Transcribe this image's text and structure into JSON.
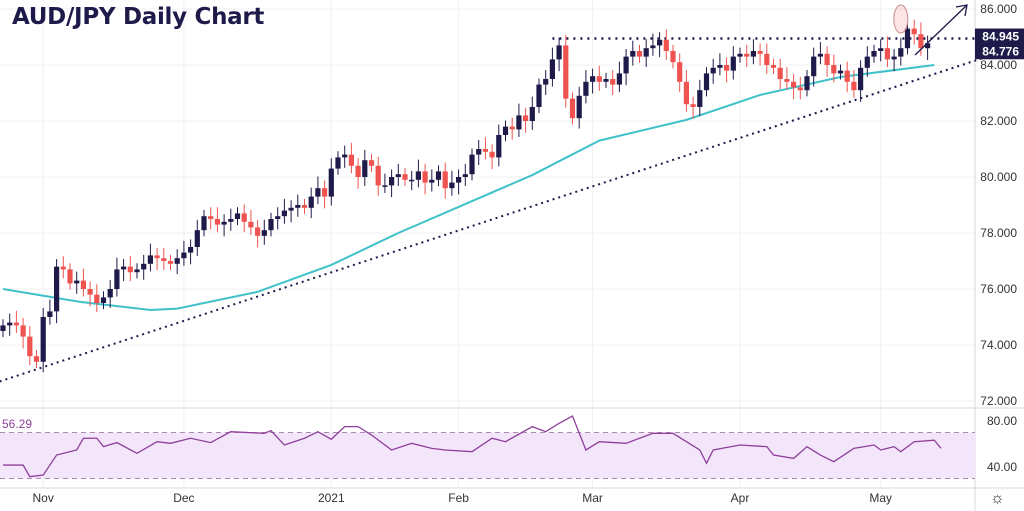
{
  "chart_data": {
    "type": "candlestick",
    "title": "AUD/JPY Daily Chart",
    "price_axis": {
      "range": [
        72,
        86
      ],
      "ticks": [
        "86.000",
        "84.000",
        "82.000",
        "80.000",
        "78.000",
        "76.000",
        "74.000",
        "72.000"
      ]
    },
    "price_badges": [
      "84.945",
      "84.776"
    ],
    "month_labels": [
      {
        "label": "Nov",
        "day": 6
      },
      {
        "label": "Dec",
        "day": 27
      },
      {
        "label": "2021",
        "day": 49
      },
      {
        "label": "Feb",
        "day": 68
      },
      {
        "label": "Mar",
        "day": 88
      },
      {
        "label": "Apr",
        "day": 110
      },
      {
        "label": "May",
        "day": 131
      }
    ],
    "first_open": 74.5,
    "closes": [
      74.7,
      74.8,
      74.7,
      74.3,
      73.6,
      73.4,
      75.0,
      75.2,
      76.8,
      76.7,
      76.2,
      76.3,
      76.0,
      75.8,
      75.5,
      75.7,
      76.0,
      76.7,
      76.8,
      76.6,
      76.7,
      76.9,
      77.2,
      77.1,
      77.0,
      76.9,
      77.1,
      77.3,
      77.5,
      78.1,
      78.6,
      78.5,
      78.3,
      78.4,
      78.5,
      78.7,
      78.4,
      78.2,
      77.9,
      78.1,
      78.5,
      78.6,
      78.8,
      78.9,
      79.0,
      78.9,
      79.3,
      79.6,
      79.3,
      80.3,
      80.7,
      80.8,
      80.4,
      80.0,
      80.6,
      80.4,
      79.7,
      79.7,
      80.0,
      80.1,
      79.9,
      79.9,
      80.2,
      79.8,
      79.9,
      80.2,
      79.6,
      79.8,
      80.0,
      80.1,
      80.8,
      81.0,
      80.9,
      80.7,
      81.5,
      81.8,
      81.7,
      82.2,
      82.0,
      82.5,
      83.3,
      83.5,
      84.2,
      84.7,
      82.8,
      82.1,
      82.9,
      83.4,
      83.6,
      83.4,
      83.5,
      83.3,
      83.7,
      84.3,
      84.5,
      84.3,
      84.6,
      84.7,
      84.9,
      84.5,
      84.1,
      83.4,
      82.6,
      82.5,
      83.1,
      83.7,
      83.9,
      84.0,
      83.8,
      84.3,
      84.4,
      84.3,
      84.5,
      84.4,
      84.0,
      83.9,
      83.5,
      83.4,
      83.2,
      83.1,
      83.6,
      84.3,
      84.4,
      84.0,
      83.7,
      83.8,
      83.4,
      83.1,
      83.9,
      84.3,
      84.5,
      84.6,
      84.2,
      84.3,
      84.6,
      85.3,
      85.1,
      84.6,
      84.776
    ],
    "moving_average": [
      [
        0,
        76.0
      ],
      [
        11.5,
        75.54
      ],
      [
        22,
        75.25
      ],
      [
        26,
        75.3
      ],
      [
        38,
        75.9
      ],
      [
        49,
        76.86
      ],
      [
        59,
        78.0
      ],
      [
        68,
        78.93
      ],
      [
        79,
        80.07
      ],
      [
        89,
        81.3
      ],
      [
        102,
        82.04
      ],
      [
        113,
        82.93
      ],
      [
        125,
        83.57
      ],
      [
        139,
        84.0
      ]
    ],
    "trendline_support": [
      [
        -0.5,
        72.7
      ],
      [
        152,
        84.7
      ]
    ],
    "resistance_level": {
      "value": 84.945,
      "from_day": 82
    },
    "rsi": {
      "label": "56.29",
      "ticks": [
        "80.00",
        "40.00"
      ],
      "overbought": 70,
      "oversold": 30,
      "values": [
        [
          0,
          41.7
        ],
        [
          3,
          41.7
        ],
        [
          4,
          31.6
        ],
        [
          6,
          33
        ],
        [
          8,
          50.4
        ],
        [
          11,
          54.8
        ],
        [
          12,
          65
        ],
        [
          14,
          65
        ],
        [
          15,
          57.7
        ],
        [
          17,
          61.2
        ],
        [
          20,
          51.9
        ],
        [
          23,
          62
        ],
        [
          25,
          60.6
        ],
        [
          28,
          65
        ],
        [
          31,
          61.2
        ],
        [
          34,
          70.7
        ],
        [
          39,
          69.3
        ],
        [
          40,
          71.6
        ],
        [
          42,
          59.1
        ],
        [
          45,
          65
        ],
        [
          47,
          70.7
        ],
        [
          49,
          64.1
        ],
        [
          51,
          75.1
        ],
        [
          53,
          75.1
        ],
        [
          55,
          67.8
        ],
        [
          58,
          54.8
        ],
        [
          61,
          60.6
        ],
        [
          64,
          56.2
        ],
        [
          66,
          54.8
        ],
        [
          70,
          53.3
        ],
        [
          73,
          65
        ],
        [
          75,
          62
        ],
        [
          79,
          75.1
        ],
        [
          81,
          70.7
        ],
        [
          83,
          78
        ],
        [
          85,
          84.3
        ],
        [
          87,
          54.8
        ],
        [
          89,
          62
        ],
        [
          93,
          60.6
        ],
        [
          97,
          69.3
        ],
        [
          100,
          69.3
        ],
        [
          102,
          62
        ],
        [
          104,
          54.8
        ],
        [
          105,
          43.2
        ],
        [
          106,
          54.8
        ],
        [
          110,
          59.1
        ],
        [
          114,
          57.7
        ],
        [
          115,
          50.4
        ],
        [
          118,
          47.5
        ],
        [
          120,
          57.7
        ],
        [
          122,
          50.4
        ],
        [
          124,
          44.6
        ],
        [
          127,
          56.2
        ],
        [
          130,
          59.1
        ],
        [
          131,
          54.8
        ],
        [
          133,
          57.7
        ],
        [
          134,
          53.3
        ],
        [
          136,
          62
        ],
        [
          139,
          63.3
        ],
        [
          140,
          56.2
        ]
      ]
    },
    "colors": {
      "up": "#1e1a4a",
      "down": "#ef5350",
      "ma": "#3fc1c9",
      "rsi": "#8e3f9a",
      "rsi_band": "#f3e6fb",
      "badge": "#1e1a4a"
    }
  }
}
